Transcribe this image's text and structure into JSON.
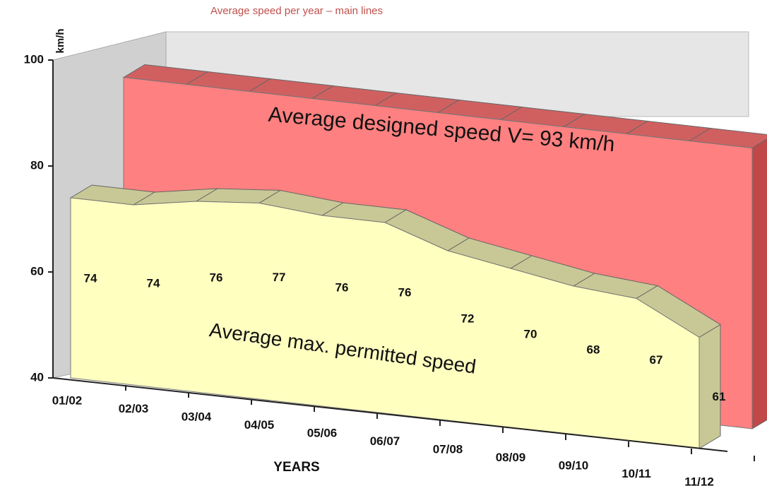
{
  "chart_data": {
    "type": "area3d",
    "title": "Average speed per year – main lines",
    "y_label": "km/h",
    "x_label": "YEARS",
    "categories": [
      "01/02",
      "02/03",
      "03/04",
      "04/05",
      "05/06",
      "06/07",
      "07/08",
      "08/09",
      "09/10",
      "10/11",
      "11/12"
    ],
    "series": [
      {
        "name": "Average max. permitted speed",
        "color": "#ffffc0",
        "values": [
          74,
          74,
          76,
          77,
          76,
          76,
          72,
          70,
          68,
          67,
          61
        ]
      },
      {
        "name": "Average designed speed V= 93 km/h",
        "color": "#ff8080",
        "values": [
          93,
          93,
          93,
          93,
          93,
          93,
          93,
          93,
          93,
          93,
          93
        ]
      }
    ],
    "ylim": [
      40,
      100
    ],
    "yticks": [
      40,
      60,
      80,
      100
    ]
  }
}
